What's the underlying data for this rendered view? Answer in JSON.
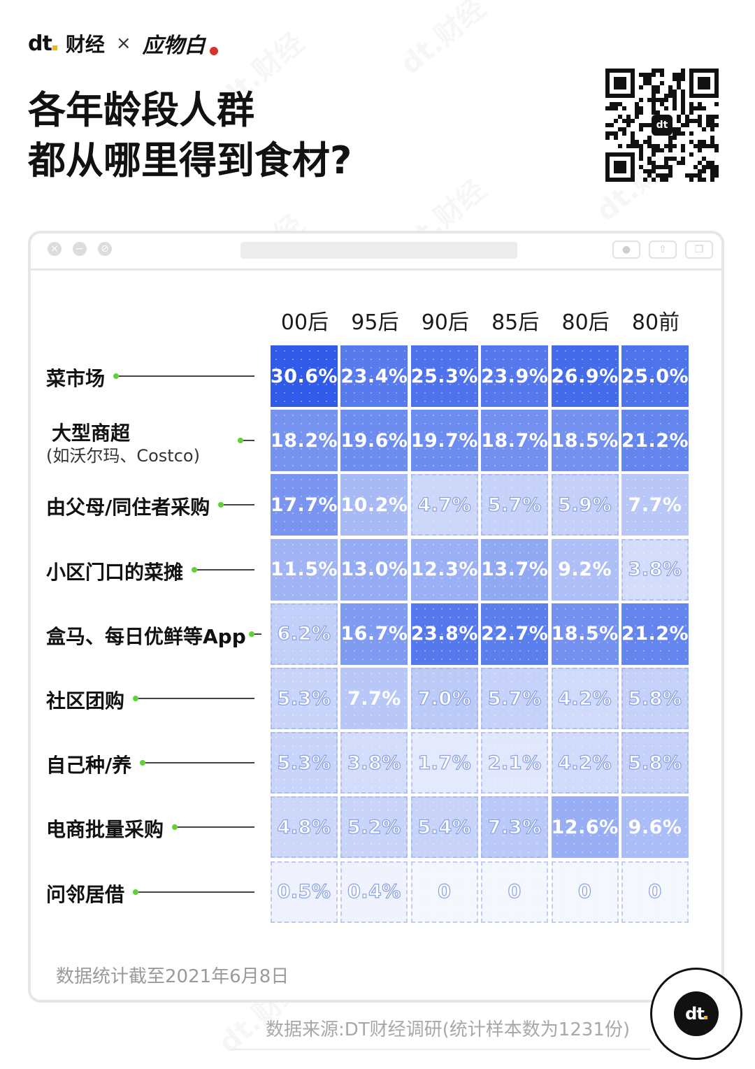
{
  "brand": {
    "logo": "dt",
    "name": "财经",
    "times": "×",
    "partner": "应物白"
  },
  "title_lines": [
    "各年龄段人群",
    "都从哪里得到食材?"
  ],
  "watermark": "dt.财经",
  "colors": {
    "max": "#2f5be8",
    "min": "#f5f7ff",
    "accent_dot": "#5ed234",
    "brand_yellow": "#f5b800"
  },
  "chart_data": {
    "type": "heatmap",
    "columns": [
      "00后",
      "95后",
      "90后",
      "85后",
      "80后",
      "80前"
    ],
    "rows": [
      {
        "label": "菜市场",
        "sub": "",
        "values": [
          30.6,
          23.4,
          25.3,
          23.9,
          26.9,
          25.0
        ],
        "display": [
          "30.6%",
          "23.4%",
          "25.3%",
          "23.9%",
          "26.9%",
          "25.0%"
        ]
      },
      {
        "label": "大型商超",
        "sub": "(如沃尔玛、Costco)",
        "values": [
          18.2,
          19.6,
          19.7,
          18.7,
          18.5,
          21.2
        ],
        "display": [
          "18.2%",
          "19.6%",
          "19.7%",
          "18.7%",
          "18.5%",
          "21.2%"
        ]
      },
      {
        "label": "由父母/同住者采购",
        "sub": "",
        "values": [
          17.7,
          10.2,
          4.7,
          5.7,
          5.9,
          7.7
        ],
        "display": [
          "17.7%",
          "10.2%",
          "4.7%",
          "5.7%",
          "5.9%",
          "7.7%"
        ]
      },
      {
        "label": "小区门口的菜摊",
        "sub": "",
        "values": [
          11.5,
          13.0,
          12.3,
          13.7,
          9.2,
          3.8
        ],
        "display": [
          "11.5%",
          "13.0%",
          "12.3%",
          "13.7%",
          "9.2%",
          "3.8%"
        ]
      },
      {
        "label": "盒马、每日优鲜等App",
        "sub": "",
        "values": [
          6.2,
          16.7,
          23.8,
          22.7,
          18.5,
          21.2
        ],
        "display": [
          "6.2%",
          "16.7%",
          "23.8%",
          "22.7%",
          "18.5%",
          "21.2%"
        ]
      },
      {
        "label": "社区团购",
        "sub": "",
        "values": [
          5.3,
          7.7,
          7.0,
          5.7,
          4.2,
          5.8
        ],
        "display": [
          "5.3%",
          "7.7%",
          "7.0%",
          "5.7%",
          "4.2%",
          "5.8%"
        ]
      },
      {
        "label": "自己种/养",
        "sub": "",
        "values": [
          5.3,
          3.8,
          1.7,
          2.1,
          4.2,
          5.8
        ],
        "display": [
          "5.3%",
          "3.8%",
          "1.7%",
          "2.1%",
          "4.2%",
          "5.8%"
        ]
      },
      {
        "label": "电商批量采购",
        "sub": "",
        "values": [
          4.8,
          5.2,
          5.4,
          7.3,
          12.6,
          9.6
        ],
        "display": [
          "4.8%",
          "5.2%",
          "5.4%",
          "7.3%",
          "12.6%",
          "9.6%"
        ]
      },
      {
        "label": "问邻居借",
        "sub": "",
        "values": [
          0.5,
          0.4,
          0,
          0,
          0,
          0
        ],
        "display": [
          "0.5%",
          "0.4%",
          "0",
          "0",
          "0",
          "0"
        ]
      }
    ]
  },
  "note": "数据统计截至2021年6月8日",
  "source": "数据来源:DT财经调研(统计样本数为1231份)"
}
